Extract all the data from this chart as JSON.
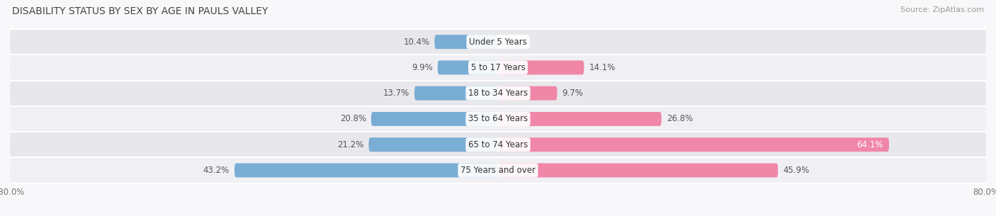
{
  "title": "DISABILITY STATUS BY SEX BY AGE IN PAULS VALLEY",
  "source": "Source: ZipAtlas.com",
  "categories": [
    "Under 5 Years",
    "5 to 17 Years",
    "18 to 34 Years",
    "35 to 64 Years",
    "65 to 74 Years",
    "75 Years and over"
  ],
  "male_values": [
    10.4,
    9.9,
    13.7,
    20.8,
    21.2,
    43.2
  ],
  "female_values": [
    0.0,
    14.1,
    9.7,
    26.8,
    64.1,
    45.9
  ],
  "male_color": "#7aadd4",
  "female_color": "#f087a8",
  "bar_height": 0.55,
  "xlim": [
    -80,
    80
  ],
  "row_bg_colors": [
    "#e8e8ec",
    "#f0f0f4"
  ],
  "label_fontsize": 8.5,
  "title_fontsize": 10.0,
  "source_fontsize": 8.0,
  "value_label_dark": "#555555",
  "value_label_white": "#ffffff",
  "center_label_color": "#333333",
  "white_label_threshold": 55.0
}
